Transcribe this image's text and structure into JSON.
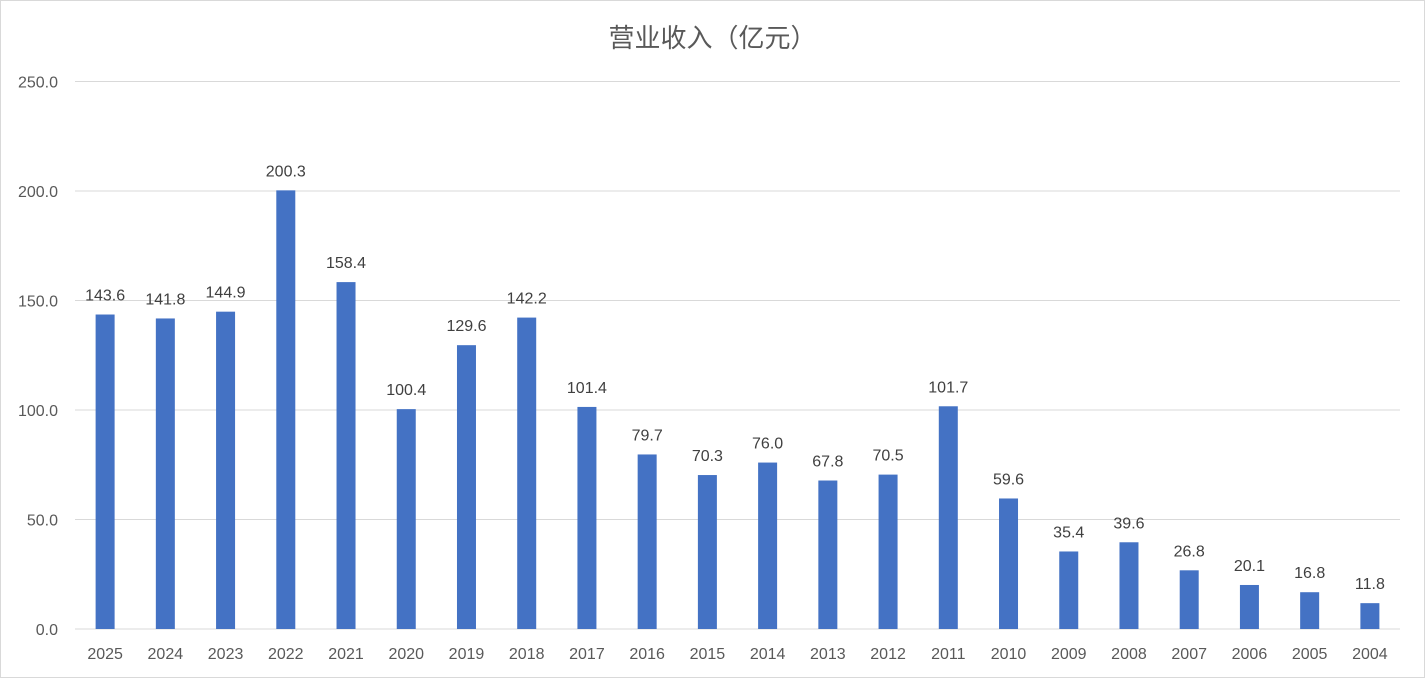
{
  "chart_data": {
    "type": "bar",
    "title": "营业收入（亿元）",
    "categories": [
      "2025",
      "2024",
      "2023",
      "2022",
      "2021",
      "2020",
      "2019",
      "2018",
      "2017",
      "2016",
      "2015",
      "2014",
      "2013",
      "2012",
      "2011",
      "2010",
      "2009",
      "2008",
      "2007",
      "2006",
      "2005",
      "2004"
    ],
    "values": [
      143.6,
      141.8,
      144.9,
      200.3,
      158.4,
      100.4,
      129.6,
      142.2,
      101.4,
      79.7,
      70.3,
      76.0,
      67.8,
      70.5,
      101.7,
      59.6,
      35.4,
      39.6,
      26.8,
      20.1,
      16.8,
      11.8
    ],
    "data_labels": [
      "143.6",
      "141.8",
      "144.9",
      "200.3",
      "158.4",
      "100.4",
      "129.6",
      "142.2",
      "101.4",
      "79.7",
      "70.3",
      "76.0",
      "67.8",
      "70.5",
      "101.7",
      "59.6",
      "35.4",
      "39.6",
      "26.8",
      "20.1",
      "16.8",
      "11.8"
    ],
    "y_ticks": [
      "0.0",
      "50.0",
      "100.0",
      "150.0",
      "200.0",
      "250.0"
    ],
    "ylim": [
      0,
      250
    ],
    "grid": true,
    "legend": "none",
    "xlabel": "",
    "ylabel": "",
    "bar_color": "#4472c4"
  }
}
